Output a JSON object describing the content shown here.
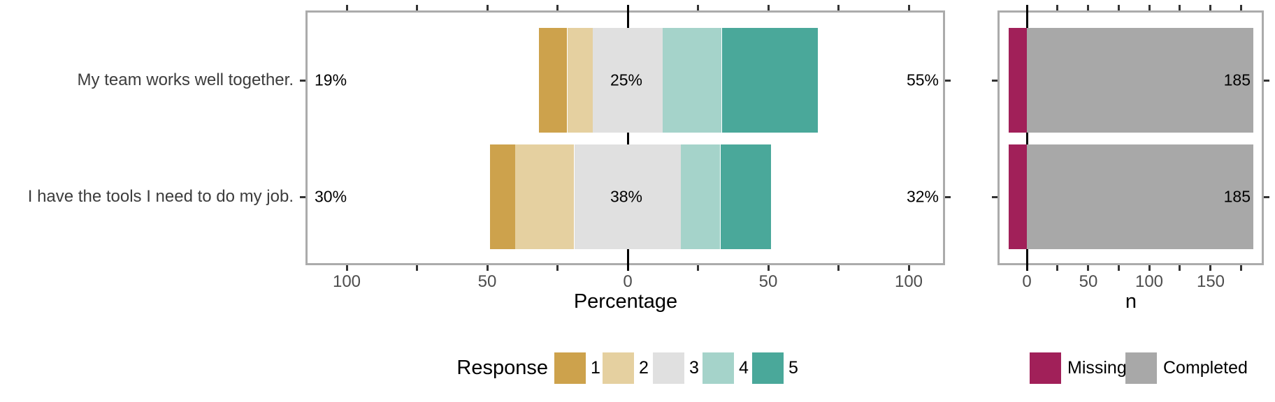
{
  "chart_data": [
    {
      "type": "diverging_stacked_bar",
      "title": "",
      "xlabel": "Percentage",
      "x_ticks": [
        -100,
        -50,
        0,
        50,
        100
      ],
      "x_tick_labels": [
        "100",
        "50",
        "0",
        "50",
        "100"
      ],
      "x_minor_ticks": [
        -75,
        -25,
        25,
        75
      ],
      "xlim": [
        -114,
        113
      ],
      "grid": false,
      "zero_line_color": "#000000",
      "panel_border_color": "#ABABAB",
      "tick_color": "#333333",
      "series_names": [
        "1",
        "2",
        "3",
        "4",
        "5"
      ],
      "series_colors": [
        "#CDA24C",
        "#E5D0A0",
        "#E0E0E0",
        "#A5D3CA",
        "#4AA89A"
      ],
      "centered_on_category": "3",
      "items": [
        {
          "question": "My team works well together.",
          "values": [
            10,
            9,
            25,
            21,
            34
          ],
          "low_label": "19%",
          "neutral_label": "25%",
          "high_label": "55%"
        },
        {
          "question": "I have the tools I need to do my job.",
          "values": [
            9,
            21,
            38,
            14,
            18
          ],
          "low_label": "30%",
          "neutral_label": "38%",
          "high_label": "32%"
        }
      ],
      "legend": {
        "title": "Response",
        "position": "bottom",
        "entries": [
          {
            "label": "1",
            "color": "#CDA24C"
          },
          {
            "label": "2",
            "color": "#E5D0A0"
          },
          {
            "label": "3",
            "color": "#E0E0E0"
          },
          {
            "label": "4",
            "color": "#A5D3CA"
          },
          {
            "label": "5",
            "color": "#4AA89A"
          }
        ]
      }
    },
    {
      "type": "bar",
      "title": "",
      "xlabel": "n",
      "x_ticks": [
        0,
        50,
        100,
        150
      ],
      "x_tick_labels": [
        "0",
        "50",
        "100",
        "150"
      ],
      "x_minor_ticks": [
        25,
        75,
        125,
        175
      ],
      "xlim": [
        -24,
        194
      ],
      "grid": false,
      "zero_line_color": "#000000",
      "panel_border_color": "#ABABAB",
      "tick_color": "#333333",
      "items": [
        {
          "missing": 15,
          "completed": 185,
          "count_label": "185"
        },
        {
          "missing": 15,
          "completed": 185,
          "count_label": "185"
        }
      ],
      "legend": {
        "position": "bottom",
        "entries": [
          {
            "label": "Missing",
            "color": "#A12059"
          },
          {
            "label": "Completed",
            "color": "#A8A8A8"
          }
        ]
      }
    }
  ]
}
